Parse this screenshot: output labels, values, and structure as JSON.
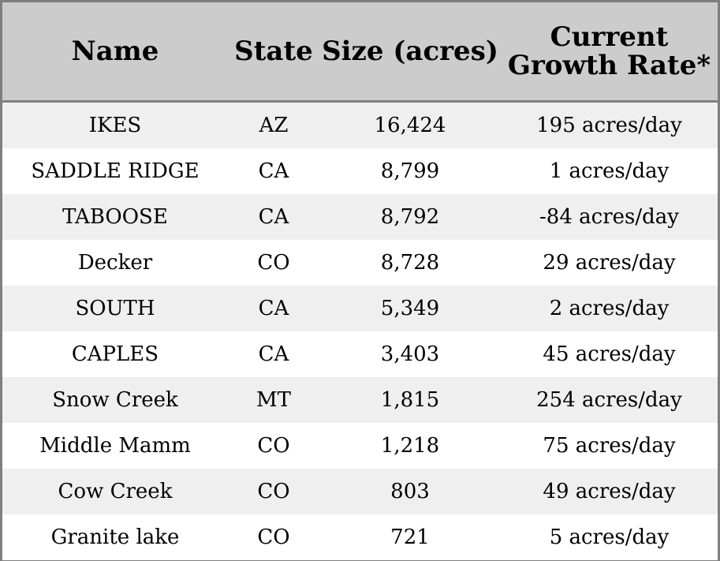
{
  "table": {
    "headers": {
      "name": "Name",
      "state": "State",
      "size": "Size (acres)",
      "rate": "Current Growth Rate*"
    },
    "rows": [
      {
        "name": "IKES",
        "state": "AZ",
        "size": "16,424",
        "rate": "195 acres/day"
      },
      {
        "name": "SADDLE RIDGE",
        "state": "CA",
        "size": "8,799",
        "rate": "1 acres/day"
      },
      {
        "name": "TABOOSE",
        "state": "CA",
        "size": "8,792",
        "rate": "-84 acres/day"
      },
      {
        "name": "Decker",
        "state": "CO",
        "size": "8,728",
        "rate": "29 acres/day"
      },
      {
        "name": "SOUTH",
        "state": "CA",
        "size": "5,349",
        "rate": "2 acres/day"
      },
      {
        "name": "CAPLES",
        "state": "CA",
        "size": "3,403",
        "rate": "45 acres/day"
      },
      {
        "name": "Snow Creek",
        "state": "MT",
        "size": "1,815",
        "rate": "254 acres/day"
      },
      {
        "name": "Middle Mamm",
        "state": "CO",
        "size": "1,218",
        "rate": "75 acres/day"
      },
      {
        "name": "Cow Creek",
        "state": "CO",
        "size": "803",
        "rate": "49 acres/day"
      },
      {
        "name": "Granite lake",
        "state": "CO",
        "size": "721",
        "rate": "5 acres/day"
      }
    ]
  },
  "colors": {
    "header_bg": "#cccccc",
    "border": "#7f7f7f",
    "row_alt": "#efefef",
    "row": "#ffffff"
  }
}
